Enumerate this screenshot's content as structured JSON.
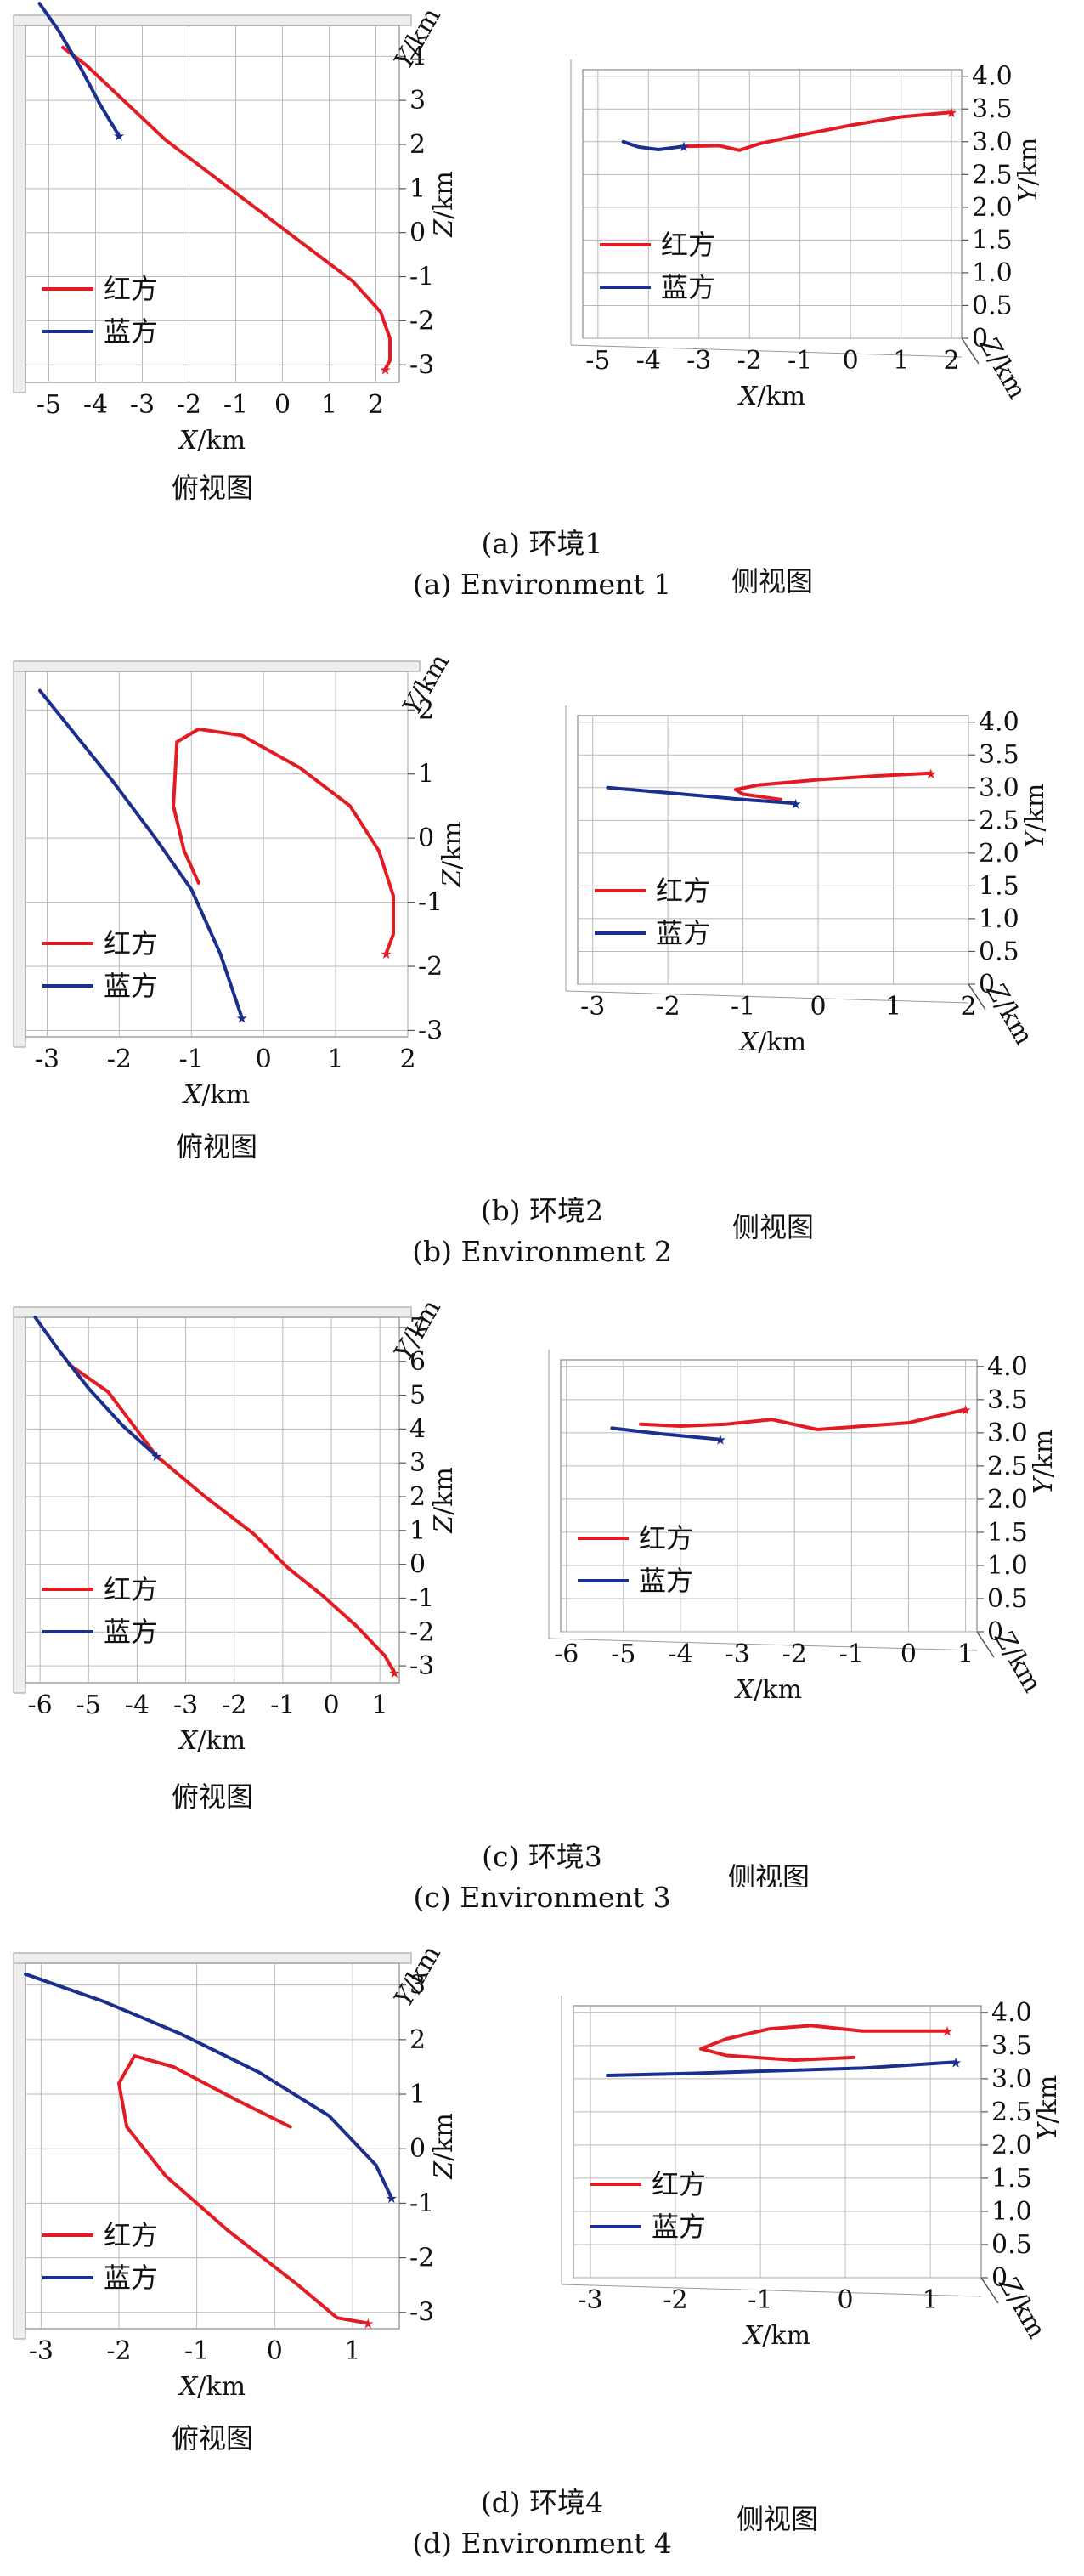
{
  "view_labels": {
    "top": "俯视图",
    "side": "侧视图"
  },
  "panels": [
    {
      "caption_cn": "(a) 环境1",
      "caption_en": "(a) Environment 1"
    },
    {
      "caption_cn": "(b) 环境2",
      "caption_en": "(b) Environment 2"
    },
    {
      "caption_cn": "(c) 环境3",
      "caption_en": "(c) Environment 3"
    },
    {
      "caption_cn": "(d) 环境4",
      "caption_en": "(d) Environment 4"
    }
  ],
  "chart_data": [
    {
      "type": "line",
      "panel": "a",
      "view": "俯视图",
      "xlabel": "X/km",
      "ylabel": "Y/km",
      "zlabel": "Z/km",
      "xticks": [
        "-5",
        "-4",
        "-3",
        "-2",
        "-1",
        "0",
        "1",
        "2"
      ],
      "yticks": [
        "-3",
        "-2",
        "-1",
        "0",
        "1",
        "2",
        "3",
        "4"
      ],
      "xlim": [
        -5.5,
        2.5
      ],
      "ylim": [
        -3.4,
        4.7
      ],
      "grid": true,
      "legend_position": "bottom-left",
      "colors": {
        "red": "#e31b23",
        "blue": "#1b2f8e"
      },
      "series": [
        {
          "name": "红方",
          "x": [
            -4.7,
            -4.2,
            -3.5,
            -2.5,
            -1.5,
            -0.5,
            0.5,
            1.5,
            2.1,
            2.3,
            2.3,
            2.2
          ],
          "y": [
            4.2,
            3.8,
            3.1,
            2.1,
            1.3,
            0.5,
            -0.3,
            -1.1,
            -1.8,
            -2.4,
            -2.9,
            -3.1
          ]
        },
        {
          "name": "蓝方",
          "x": [
            -5.2,
            -4.8,
            -4.3,
            -3.9,
            -3.5
          ],
          "y": [
            5.2,
            4.6,
            3.7,
            2.9,
            2.2
          ]
        }
      ]
    },
    {
      "type": "line",
      "panel": "a",
      "view": "侧视图",
      "xlabel": "X/km",
      "ylabel": "Y/km",
      "zlabel": "Z/km",
      "xticks": [
        "-5",
        "-4",
        "-3",
        "-2",
        "-1",
        "0",
        "1",
        "2"
      ],
      "yticks": [
        "0",
        "0.5",
        "1.0",
        "1.5",
        "2.0",
        "2.5",
        "3.0",
        "3.5",
        "4.0"
      ],
      "xlim": [
        -5.3,
        2.2
      ],
      "ylim": [
        0,
        4.1
      ],
      "grid": true,
      "legend_position": "bottom-left",
      "colors": {
        "red": "#e31b23",
        "blue": "#1b2f8e"
      },
      "series": [
        {
          "name": "红方",
          "x": [
            -3.3,
            -2.6,
            -2.2,
            -1.8,
            -1.0,
            0.0,
            1.0,
            2.0
          ],
          "y": [
            2.93,
            2.94,
            2.87,
            2.97,
            3.1,
            3.25,
            3.38,
            3.45
          ]
        },
        {
          "name": "蓝方",
          "x": [
            -4.5,
            -4.2,
            -3.8,
            -3.3
          ],
          "y": [
            3.0,
            2.92,
            2.88,
            2.93
          ]
        }
      ]
    },
    {
      "type": "line",
      "panel": "b",
      "view": "俯视图",
      "xlabel": "X/km",
      "ylabel": "Y/km",
      "zlabel": "Z/km",
      "xticks": [
        "-3",
        "-2",
        "-1",
        "0",
        "1",
        "2"
      ],
      "yticks": [
        "-3",
        "-2",
        "-1",
        "0",
        "1",
        "2"
      ],
      "xlim": [
        -3.3,
        2.0
      ],
      "ylim": [
        -3.1,
        2.6
      ],
      "grid": true,
      "legend_position": "bottom-left",
      "colors": {
        "red": "#e31b23",
        "blue": "#1b2f8e"
      },
      "series": [
        {
          "name": "红方",
          "x": [
            -0.9,
            -1.1,
            -1.25,
            -1.2,
            -0.9,
            -0.3,
            0.5,
            1.2,
            1.6,
            1.8,
            1.8,
            1.7
          ],
          "y": [
            -0.7,
            -0.2,
            0.5,
            1.5,
            1.7,
            1.6,
            1.1,
            0.5,
            -0.2,
            -0.9,
            -1.5,
            -1.8
          ]
        },
        {
          "name": "蓝方",
          "x": [
            -3.1,
            -2.6,
            -2.1,
            -1.5,
            -1.0,
            -0.6,
            -0.3
          ],
          "y": [
            2.3,
            1.6,
            0.9,
            0.0,
            -0.8,
            -1.8,
            -2.8
          ]
        }
      ]
    },
    {
      "type": "line",
      "panel": "b",
      "view": "侧视图",
      "xlabel": "X/km",
      "ylabel": "Y/km",
      "zlabel": "Z/km",
      "xticks": [
        "-3",
        "-2",
        "-1",
        "0",
        "1",
        "2"
      ],
      "yticks": [
        "0",
        "0.5",
        "1.0",
        "1.5",
        "2.0",
        "2.5",
        "3.0",
        "3.5",
        "4.0"
      ],
      "xlim": [
        -3.2,
        2.0
      ],
      "ylim": [
        0,
        4.1
      ],
      "grid": true,
      "legend_position": "bottom-left",
      "colors": {
        "red": "#e31b23",
        "blue": "#1b2f8e"
      },
      "series": [
        {
          "name": "红方",
          "x": [
            -0.5,
            -1.0,
            -1.1,
            -0.8,
            0.0,
            0.8,
            1.5
          ],
          "y": [
            2.82,
            2.9,
            2.97,
            3.04,
            3.12,
            3.18,
            3.22
          ]
        },
        {
          "name": "蓝方",
          "x": [
            -2.8,
            -2.0,
            -1.0,
            -0.3
          ],
          "y": [
            3.0,
            2.92,
            2.82,
            2.76
          ]
        }
      ]
    },
    {
      "type": "line",
      "panel": "c",
      "view": "俯视图",
      "xlabel": "X/km",
      "ylabel": "Y/km",
      "zlabel": "Z/km",
      "xticks": [
        "-6",
        "-5",
        "-4",
        "-3",
        "-2",
        "-1",
        "0",
        "1"
      ],
      "yticks": [
        "-3",
        "-2",
        "-1",
        "0",
        "1",
        "2",
        "3",
        "4",
        "5",
        "6",
        "7"
      ],
      "xlim": [
        -6.3,
        1.4
      ],
      "ylim": [
        -3.5,
        7.3
      ],
      "grid": true,
      "legend_position": "bottom-left",
      "colors": {
        "red": "#e31b23",
        "blue": "#1b2f8e"
      },
      "series": [
        {
          "name": "红方",
          "x": [
            -5.4,
            -4.6,
            -3.6,
            -2.6,
            -1.6,
            -0.9,
            -0.2,
            0.5,
            1.1,
            1.3
          ],
          "y": [
            5.9,
            5.1,
            3.2,
            2.0,
            0.9,
            -0.1,
            -0.9,
            -1.8,
            -2.7,
            -3.2
          ]
        },
        {
          "name": "蓝方",
          "x": [
            -6.1,
            -5.6,
            -5.0,
            -4.3,
            -3.6
          ],
          "y": [
            7.3,
            6.3,
            5.2,
            4.1,
            3.2
          ]
        }
      ]
    },
    {
      "type": "line",
      "panel": "c",
      "view": "侧视图",
      "xlabel": "X/km",
      "ylabel": "Y/km",
      "zlabel": "Z/km",
      "xticks": [
        "-6",
        "-5",
        "-4",
        "-3",
        "-2",
        "-1",
        "0",
        "1"
      ],
      "yticks": [
        "0",
        "0.5",
        "1.0",
        "1.5",
        "2.0",
        "2.5",
        "3.0",
        "3.5",
        "4.0"
      ],
      "xlim": [
        -6.1,
        1.2
      ],
      "ylim": [
        0,
        4.1
      ],
      "grid": true,
      "legend_position": "bottom-left",
      "colors": {
        "red": "#e31b23",
        "blue": "#1b2f8e"
      },
      "series": [
        {
          "name": "红方",
          "x": [
            -4.7,
            -4.0,
            -3.2,
            -2.4,
            -1.6,
            -0.8,
            0.0,
            1.0
          ],
          "y": [
            3.13,
            3.1,
            3.13,
            3.2,
            3.05,
            3.1,
            3.15,
            3.35
          ]
        },
        {
          "name": "蓝方",
          "x": [
            -5.2,
            -4.3,
            -3.3
          ],
          "y": [
            3.07,
            2.98,
            2.9
          ]
        }
      ]
    },
    {
      "type": "line",
      "panel": "d",
      "view": "俯视图",
      "xlabel": "X/km",
      "ylabel": "Y/km",
      "zlabel": "Z/km",
      "xticks": [
        "-3",
        "-2",
        "-1",
        "0",
        "1"
      ],
      "yticks": [
        "-3",
        "-2",
        "-1",
        "0",
        "1",
        "2",
        "3"
      ],
      "xlim": [
        -3.2,
        1.6
      ],
      "ylim": [
        -3.3,
        3.4
      ],
      "grid": true,
      "legend_position": "bottom-left",
      "colors": {
        "red": "#e31b23",
        "blue": "#1b2f8e"
      },
      "series": [
        {
          "name": "红方",
          "x": [
            0.2,
            -0.5,
            -1.3,
            -1.8,
            -2.0,
            -1.9,
            -1.4,
            -0.6,
            0.3,
            0.8,
            1.2
          ],
          "y": [
            0.4,
            0.9,
            1.5,
            1.7,
            1.2,
            0.4,
            -0.5,
            -1.5,
            -2.5,
            -3.1,
            -3.2
          ]
        },
        {
          "name": "蓝方",
          "x": [
            -3.2,
            -2.2,
            -1.2,
            -0.2,
            0.7,
            1.3,
            1.5
          ],
          "y": [
            3.2,
            2.7,
            2.1,
            1.4,
            0.6,
            -0.3,
            -0.9
          ]
        }
      ]
    },
    {
      "type": "line",
      "panel": "d",
      "view": "侧视图",
      "xlabel": "X/km",
      "ylabel": "Y/km",
      "zlabel": "Z/km",
      "xticks": [
        "-3",
        "-2",
        "-1",
        "0",
        "1"
      ],
      "yticks": [
        "0",
        "0.5",
        "1.0",
        "1.5",
        "2.0",
        "2.5",
        "3.0",
        "3.5",
        "4.0"
      ],
      "xlim": [
        -3.2,
        1.6
      ],
      "ylim": [
        0,
        4.1
      ],
      "grid": true,
      "legend_position": "bottom-left",
      "colors": {
        "red": "#e31b23",
        "blue": "#1b2f8e"
      },
      "series": [
        {
          "name": "红方",
          "x": [
            0.1,
            -0.6,
            -1.4,
            -1.7,
            -1.4,
            -0.9,
            -0.4,
            0.2,
            1.2
          ],
          "y": [
            3.32,
            3.28,
            3.35,
            3.45,
            3.6,
            3.75,
            3.8,
            3.72,
            3.72
          ]
        },
        {
          "name": "蓝方",
          "x": [
            -2.8,
            -1.8,
            -0.8,
            0.2,
            1.3
          ],
          "y": [
            3.05,
            3.08,
            3.12,
            3.16,
            3.25
          ]
        }
      ]
    }
  ]
}
